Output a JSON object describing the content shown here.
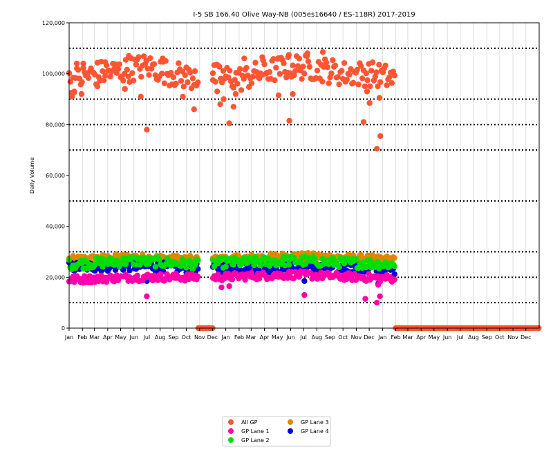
{
  "chart_data": {
    "type": "scatter",
    "title": "I-5  SB  166.40  Olive Way-NB (005es16640 / ES-118R) 2017-2019",
    "xlabel": "",
    "ylabel": "Daily Volume",
    "ylim": [
      0,
      120000
    ],
    "yticks": [
      0,
      20000,
      40000,
      60000,
      80000,
      100000,
      120000
    ],
    "ytick_labels": [
      "0",
      "20,000",
      "40,000",
      "60,000",
      "80,000",
      "100,000",
      "120,000"
    ],
    "y_dotted_gridlines": [
      10000,
      20000,
      30000,
      50000,
      70000,
      80000,
      90000,
      110000
    ],
    "xlim_days": [
      0,
      1095
    ],
    "xticks_days": [
      0,
      31,
      59,
      90,
      120,
      151,
      181,
      212,
      243,
      273,
      304,
      334,
      365,
      396,
      424,
      455,
      485,
      516,
      546,
      577,
      608,
      638,
      669,
      699,
      730,
      761,
      789,
      820,
      850,
      881,
      911,
      942,
      973,
      1003,
      1034,
      1064
    ],
    "xtick_labels": [
      "Jan",
      "Feb",
      "Mar",
      "Apr",
      "May",
      "Jun",
      "Jul",
      "Aug",
      "Sep",
      "Oct",
      "Nov",
      "Dec",
      "Jan",
      "Feb",
      "Mar",
      "Apr",
      "May",
      "Jun",
      "Jul",
      "Aug",
      "Sep",
      "Oct",
      "Nov",
      "Dec",
      "Jan",
      "Feb",
      "Mar",
      "Apr",
      "May",
      "Jun",
      "Jul",
      "Aug",
      "Sep",
      "Oct",
      "Nov",
      "Dec"
    ],
    "grid": "vertical lines at each month, dotted horizontal lines",
    "legend_position": "bottom-center",
    "series": [
      {
        "name": "All GP",
        "color": "#ff5533",
        "segments": [
          {
            "start": 0,
            "end": 300,
            "points": [
              [
                0,
                97000
              ],
              [
                60,
                100000
              ],
              [
                120,
                101000
              ],
              [
                180,
                103000
              ],
              [
                240,
                100000
              ],
              [
                300,
                98000
              ]
            ],
            "spread": 5000
          },
          {
            "start": 335,
            "end": 760,
            "points": [
              [
                335,
                99000
              ],
              [
                400,
                98000
              ],
              [
                460,
                101000
              ],
              [
                520,
                103000
              ],
              [
                580,
                102000
              ],
              [
                640,
                100000
              ],
              [
                700,
                100000
              ],
              [
                760,
                98000
              ]
            ],
            "spread": 5000
          }
        ],
        "zero_ranges": [
          [
            301,
            334
          ],
          [
            761,
            1094
          ]
        ],
        "outliers": [
          [
            7,
            91000
          ],
          [
            12,
            93000
          ],
          [
            18,
            104000
          ],
          [
            29,
            92000
          ],
          [
            33,
            104000
          ],
          [
            66,
            95000
          ],
          [
            84,
            104500
          ],
          [
            130,
            94000
          ],
          [
            139,
            107000
          ],
          [
            167,
            91000
          ],
          [
            181,
            78000
          ],
          [
            218,
            106000
          ],
          [
            265,
            91000
          ],
          [
            291,
            86000
          ],
          [
            293,
            101000
          ],
          [
            335,
            97500
          ],
          [
            345,
            93000
          ],
          [
            352,
            88000
          ],
          [
            360,
            90000
          ],
          [
            373,
            80500
          ],
          [
            383,
            87000
          ],
          [
            388,
            92000
          ],
          [
            408,
            106000
          ],
          [
            450,
            106500
          ],
          [
            488,
            91500
          ],
          [
            510,
            106500
          ],
          [
            513,
            81500
          ],
          [
            521,
            92000
          ],
          [
            555,
            108000
          ],
          [
            591,
            108500
          ],
          [
            686,
            81000
          ],
          [
            694,
            93000
          ],
          [
            700,
            88500
          ],
          [
            723,
            90500
          ],
          [
            717,
            70500
          ],
          [
            725,
            75500
          ]
        ]
      },
      {
        "name": "GP Lane 1",
        "color": "#ff00aa",
        "segments": [
          {
            "start": 0,
            "end": 300,
            "points": [
              [
                0,
                19000
              ],
              [
                150,
                20000
              ],
              [
                300,
                20000
              ]
            ],
            "spread": 1500
          },
          {
            "start": 335,
            "end": 760,
            "points": [
              [
                335,
                20000
              ],
              [
                520,
                21000
              ],
              [
                760,
                19500
              ]
            ],
            "spread": 1500
          }
        ],
        "zero_ranges": [],
        "outliers": [
          [
            181,
            12500
          ],
          [
            355,
            16000
          ],
          [
            373,
            16500
          ],
          [
            548,
            13000
          ],
          [
            690,
            11500
          ],
          [
            717,
            10000
          ],
          [
            724,
            12500
          ],
          [
            720,
            17000
          ]
        ]
      },
      {
        "name": "GP Lane 2",
        "color": "#00dd00",
        "segments": [
          {
            "start": 0,
            "end": 300,
            "points": [
              [
                0,
                25000
              ],
              [
                150,
                26500
              ],
              [
                300,
                25000
              ]
            ],
            "spread": 2000
          },
          {
            "start": 335,
            "end": 760,
            "points": [
              [
                335,
                25500
              ],
              [
                520,
                26500
              ],
              [
                760,
                25000
              ]
            ],
            "spread": 2000
          }
        ],
        "zero_ranges": [],
        "outliers": []
      },
      {
        "name": "GP Lane 3",
        "color": "#dd8800",
        "segments": [
          {
            "start": 0,
            "end": 300,
            "points": [
              [
                0,
                27000
              ],
              [
                150,
                28000
              ],
              [
                300,
                27000
              ]
            ],
            "spread": 1300
          },
          {
            "start": 335,
            "end": 760,
            "points": [
              [
                335,
                27000
              ],
              [
                520,
                28500
              ],
              [
                760,
                27000
              ]
            ],
            "spread": 1300
          }
        ],
        "zero_ranges": [],
        "outliers": []
      },
      {
        "name": "GP Lane 4",
        "color": "#0000dd",
        "segments": [
          {
            "start": 0,
            "end": 300,
            "points": [
              [
                0,
                24000
              ],
              [
                150,
                24500
              ],
              [
                300,
                23500
              ]
            ],
            "spread": 2000
          },
          {
            "start": 335,
            "end": 760,
            "points": [
              [
                335,
                23500
              ],
              [
                520,
                24000
              ],
              [
                760,
                23000
              ]
            ],
            "spread": 2000
          }
        ],
        "zero_ranges": [],
        "outliers": [
          [
            181,
            18500
          ],
          [
            548,
            18500
          ],
          [
            720,
            17500
          ]
        ]
      }
    ],
    "legend": {
      "columns": [
        [
          "All GP",
          "GP Lane 1",
          "GP Lane 2"
        ],
        [
          "GP Lane 3",
          "GP Lane 4"
        ]
      ]
    }
  }
}
